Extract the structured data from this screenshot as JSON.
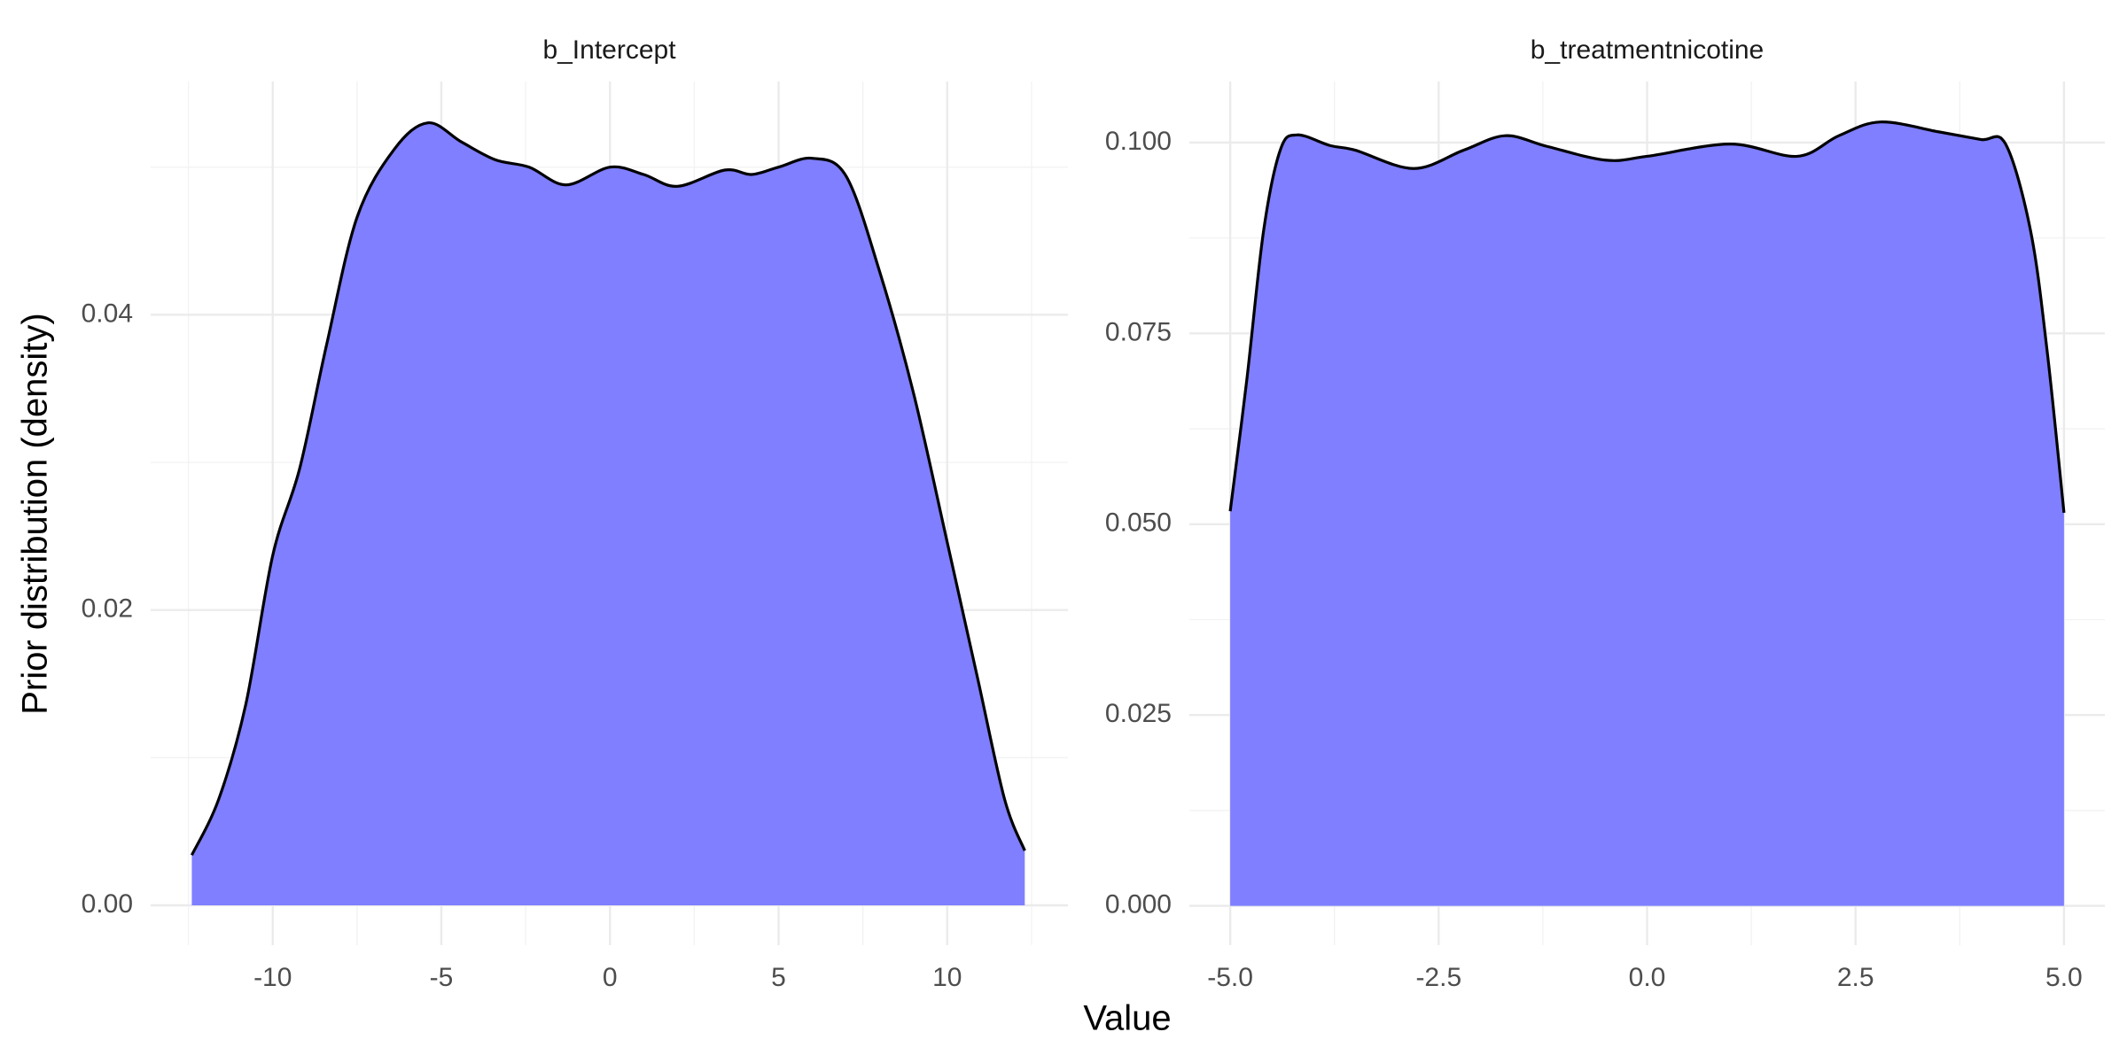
{
  "xlabel": "Value",
  "ylabel": "Prior distribution (density)",
  "chart_data": [
    {
      "type": "area",
      "title": "b_Intercept",
      "color": "#7f7fff",
      "line_color": "#000000",
      "grid": true,
      "x": [
        -12.4,
        -11.6,
        -10.8,
        -10,
        -9.2,
        -8.4,
        -7.5,
        -6.4,
        -5.4,
        -4.4,
        -3.4,
        -2.4,
        -1.3,
        0,
        1,
        2,
        3.4,
        4.2,
        5,
        6,
        7,
        8,
        9,
        10,
        10.9,
        11.7,
        12.3
      ],
      "values": [
        0.0034,
        0.0072,
        0.0136,
        0.0237,
        0.0296,
        0.038,
        0.0466,
        0.0512,
        0.053,
        0.0517,
        0.0505,
        0.05,
        0.0488,
        0.05,
        0.0495,
        0.0487,
        0.0498,
        0.0495,
        0.05,
        0.0506,
        0.0494,
        0.0429,
        0.0347,
        0.0246,
        0.0154,
        0.0072,
        0.0037
      ],
      "xlim": [
        -13.62,
        13.58
      ],
      "ylim": [
        -0.0027,
        0.0558
      ],
      "xticks": [
        -10,
        -5,
        0,
        5,
        10
      ],
      "yticks": [
        {
          "value": 0,
          "label": "0.00"
        },
        {
          "value": 0.02,
          "label": "0.02"
        },
        {
          "value": 0.04,
          "label": "0.04"
        }
      ]
    },
    {
      "type": "area",
      "title": "b_treatmentnicotine",
      "color": "#7f7fff",
      "line_color": "#000000",
      "grid": true,
      "x": [
        -5,
        -4.8,
        -4.6,
        -4.4,
        -4.2,
        -3.8,
        -3.5,
        -2.8,
        -2.2,
        -1.7,
        -1.2,
        -0.5,
        0,
        1,
        1.8,
        2.3,
        2.8,
        3.5,
        4,
        4.3,
        4.6,
        4.8,
        5
      ],
      "values": [
        0.0517,
        0.069,
        0.0884,
        0.099,
        0.101,
        0.0996,
        0.099,
        0.0966,
        0.099,
        0.1009,
        0.0995,
        0.0977,
        0.0982,
        0.0998,
        0.0982,
        0.1009,
        0.1027,
        0.1014,
        0.1004,
        0.0998,
        0.0884,
        0.0725,
        0.0515
      ],
      "xlim": [
        -5.49,
        5.49
      ],
      "ylim": [
        -0.00515,
        0.108
      ],
      "xticks": [
        {
          "value": -5,
          "label": "-5.0"
        },
        {
          "value": -2.5,
          "label": "-2.5"
        },
        {
          "value": 0,
          "label": "0.0"
        },
        {
          "value": 2.5,
          "label": "2.5"
        },
        {
          "value": 5,
          "label": "5.0"
        }
      ],
      "yticks": [
        {
          "value": 0,
          "label": "0.000"
        },
        {
          "value": 0.025,
          "label": "0.025"
        },
        {
          "value": 0.05,
          "label": "0.050"
        },
        {
          "value": 0.075,
          "label": "0.075"
        },
        {
          "value": 0.1,
          "label": "0.100"
        }
      ]
    }
  ]
}
